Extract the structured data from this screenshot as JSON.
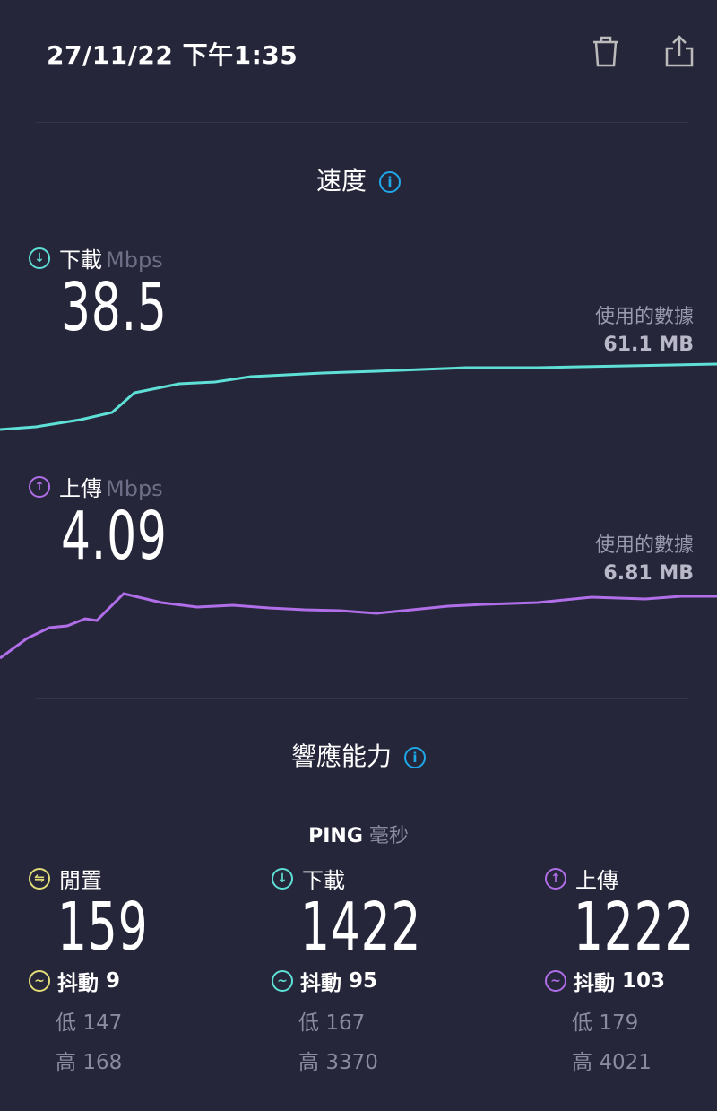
{
  "header": {
    "datetime": "27/11/22 下午1:35",
    "delete_icon": "trash-icon",
    "share_icon": "share-icon"
  },
  "speed": {
    "title": "速度",
    "info_icon": "i",
    "download": {
      "label": "下載",
      "unit": "Mbps",
      "value": "38.5",
      "data_used_label": "使用的數據",
      "data_used": "61.1 MB",
      "color": "#5ee0d6"
    },
    "upload": {
      "label": "上傳",
      "unit": "Mbps",
      "value": "4.09",
      "data_used_label": "使用的數據",
      "data_used": "6.81 MB",
      "color": "#b06ee8"
    }
  },
  "responsiveness": {
    "title": "響應能力",
    "info_icon": "i",
    "ping_label": "PING",
    "ping_unit": "毫秒",
    "columns": [
      {
        "label": "閒置",
        "value": "159",
        "jitter_label": "抖動",
        "jitter": "9",
        "low_label": "低",
        "low": "147",
        "high_label": "高",
        "high": "168",
        "color": "#e2dc78",
        "icon": "⇋"
      },
      {
        "label": "下載",
        "value": "1422",
        "jitter_label": "抖動",
        "jitter": "95",
        "low_label": "低",
        "low": "167",
        "high_label": "高",
        "high": "3370",
        "color": "#5ee0d6",
        "icon": "↓"
      },
      {
        "label": "上傳",
        "value": "1222",
        "jitter_label": "抖動",
        "jitter": "103",
        "low_label": "低",
        "low": "179",
        "high_label": "高",
        "high": "4021",
        "color": "#b06ee8",
        "icon": "↑"
      }
    ]
  }
}
